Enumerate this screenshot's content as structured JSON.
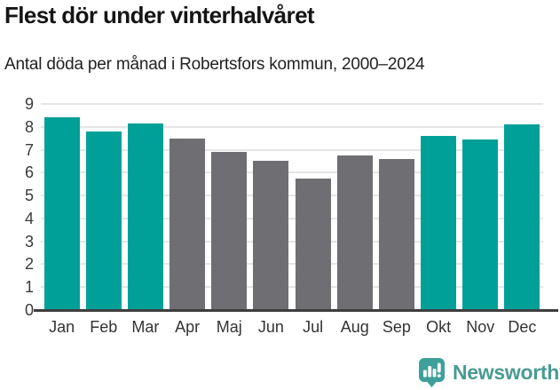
{
  "header": {
    "title": "Flest dör under vinterhalvåret",
    "subtitle": "Antal döda per månad i Robertsfors kommun, 2000–2024"
  },
  "chart_data": {
    "type": "bar",
    "title": "Flest dör under vinterhalvåret",
    "subtitle": "Antal döda per månad i Robertsfors kommun, 2000–2024",
    "categories": [
      "Jan",
      "Feb",
      "Mar",
      "Apr",
      "Maj",
      "Jun",
      "Jul",
      "Aug",
      "Sep",
      "Okt",
      "Nov",
      "Dec"
    ],
    "values": [
      8.4,
      7.8,
      8.15,
      7.5,
      6.9,
      6.5,
      5.75,
      6.75,
      6.6,
      7.6,
      7.45,
      8.1
    ],
    "bar_colors": [
      "teal",
      "teal",
      "teal",
      "gray",
      "gray",
      "gray",
      "gray",
      "gray",
      "gray",
      "teal",
      "teal",
      "teal"
    ],
    "colors": {
      "teal": "#00A099",
      "gray": "#6E6E73"
    },
    "xlabel": "",
    "ylabel": "",
    "ylim": [
      0,
      9
    ],
    "yticks": [
      0,
      1,
      2,
      3,
      4,
      5,
      6,
      7,
      8,
      9
    ],
    "grid": "horizontal",
    "legend": "none"
  },
  "footer": {
    "brand": "Newsworthy",
    "logo_icon": "newsworthy-speech-bubble-bar-chart-icon"
  },
  "theme": {
    "background": "#FFFFFF",
    "title_color": "#151515",
    "subtitle_color": "#222222",
    "axis_label_color": "#3A3A3A",
    "gridline_color": "#E5E5E5",
    "axis_line_color": "#3E3E3E",
    "logo_color": "#4A9B95",
    "logo_bubble_color": "#3FA09A"
  }
}
